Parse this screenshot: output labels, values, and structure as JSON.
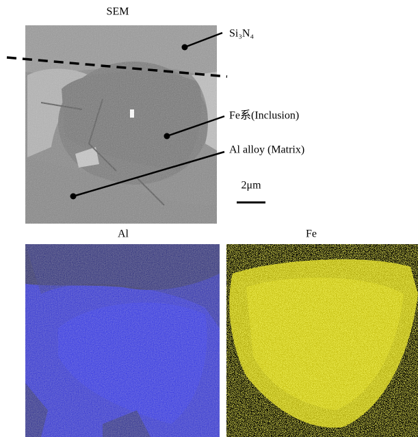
{
  "sem": {
    "title": "SEM",
    "annotations": [
      "Si₃N₄",
      "Fe系(Inclusion)",
      "Al alloy (Matrix)"
    ],
    "scale_bar": "2μm"
  },
  "maps": [
    {
      "title": "Al"
    },
    {
      "title": "Fe"
    }
  ]
}
